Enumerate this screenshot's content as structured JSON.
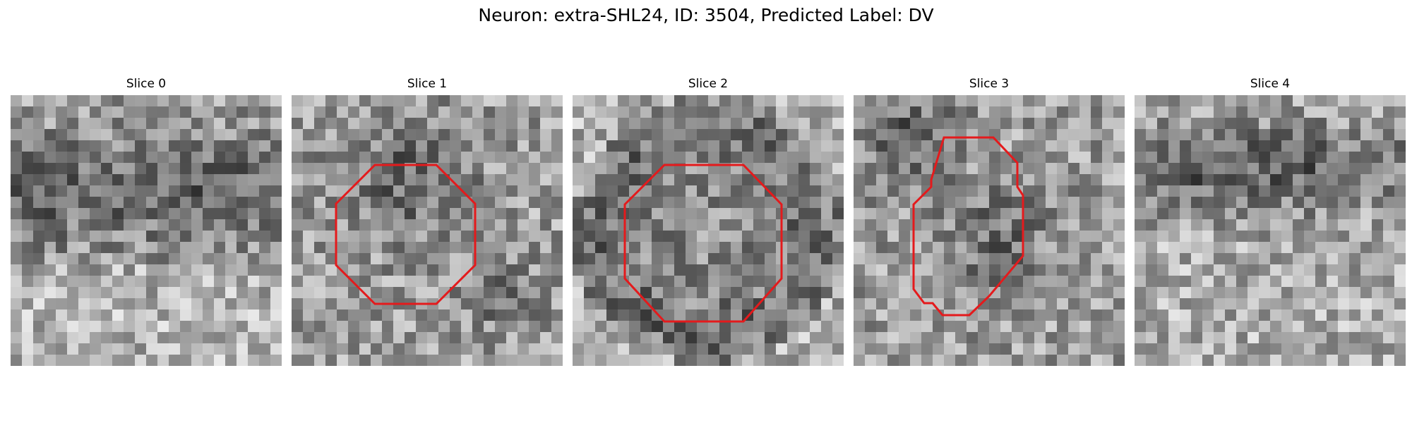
{
  "figure": {
    "title": "Neuron: extra-SHL24, ID: 3504, Predicted Label: DV"
  },
  "slices": [
    {
      "label": "Slice 0",
      "has_roi": false
    },
    {
      "label": "Slice 1",
      "has_roi": true
    },
    {
      "label": "Slice 2",
      "has_roi": true
    },
    {
      "label": "Slice 3",
      "has_roi": true
    },
    {
      "label": "Slice 4",
      "has_roi": false
    }
  ],
  "colors": {
    "roi_outline": "#e41a1c",
    "background": "#ffffff",
    "colormap": "gray"
  }
}
